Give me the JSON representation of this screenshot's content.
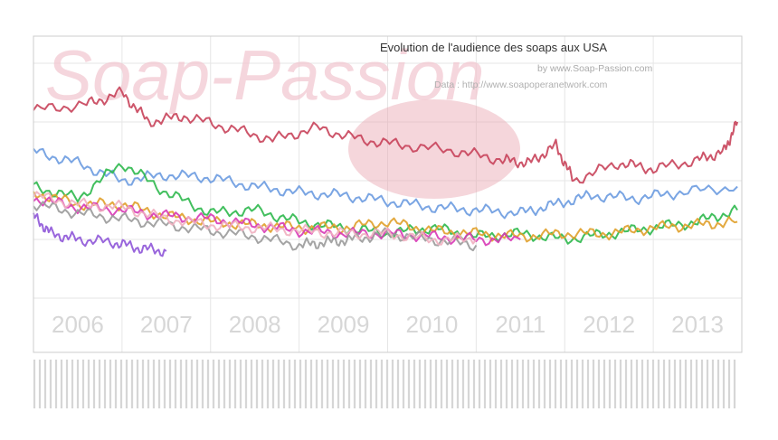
{
  "chart_data": {
    "type": "line",
    "title": "Evolution de l'audience des soaps aux USA",
    "subtitle": "by www.Soap-Passion.com",
    "source": "Data : http://www.soapoperanetwork.com",
    "watermark": "Soap-Passion",
    "x_labels": [
      "2006",
      "2007",
      "2008",
      "2009",
      "2010",
      "2011",
      "2012",
      "2013"
    ],
    "x_range": [
      2006,
      2014
    ],
    "ylim": [
      1,
      5
    ],
    "yticks": [
      1,
      2,
      3,
      4,
      5
    ],
    "grid": true,
    "series": [
      {
        "color": "#c8435a",
        "x": [
          2006.0,
          2006.6,
          2007.0,
          2007.3,
          2007.7,
          2008.2,
          2008.7,
          2009.2,
          2009.7,
          2010.2,
          2010.8,
          2011.3,
          2011.6,
          2011.9,
          2012.1,
          2012.6,
          2013.0,
          2013.5,
          2013.8,
          2013.95
        ],
        "y": [
          4.2,
          4.3,
          4.5,
          4.0,
          4.1,
          3.9,
          3.7,
          3.9,
          3.7,
          3.6,
          3.5,
          3.35,
          3.3,
          3.6,
          3.0,
          3.3,
          3.2,
          3.35,
          3.5,
          4.0
        ]
      },
      {
        "color": "#6b9be0",
        "x": [
          2006.0,
          2006.5,
          2007.0,
          2007.5,
          2008.0,
          2008.5,
          2009.0,
          2009.5,
          2010.0,
          2010.5,
          2011.0,
          2011.5,
          2011.9,
          2012.3,
          2012.8,
          2013.3,
          2013.95
        ],
        "y": [
          3.5,
          3.3,
          3.0,
          3.1,
          3.05,
          2.9,
          2.8,
          2.75,
          2.65,
          2.55,
          2.5,
          2.45,
          2.6,
          2.75,
          2.7,
          2.8,
          2.9
        ]
      },
      {
        "color": "#2db84d",
        "x": [
          2006.0,
          2006.5,
          2007.0,
          2007.5,
          2008.0,
          2008.5,
          2009.0,
          2009.5,
          2010.0,
          2010.5,
          2011.0,
          2011.5,
          2012.0,
          2012.5,
          2013.0,
          2013.5,
          2013.95
        ],
        "y": [
          2.9,
          2.7,
          3.3,
          2.8,
          2.45,
          2.5,
          2.3,
          2.2,
          2.1,
          2.2,
          2.05,
          2.1,
          2.0,
          2.1,
          2.2,
          2.3,
          2.5
        ]
      },
      {
        "color": "#e0a02a",
        "x": [
          2006.0,
          2006.5,
          2007.0,
          2007.5,
          2008.0,
          2008.5,
          2009.0,
          2009.5,
          2010.0,
          2010.5,
          2011.0,
          2011.5,
          2012.0,
          2012.5,
          2013.0,
          2013.5,
          2013.95
        ],
        "y": [
          2.8,
          2.6,
          2.6,
          2.4,
          2.3,
          2.25,
          2.2,
          2.2,
          2.3,
          2.15,
          2.1,
          2.05,
          2.1,
          2.1,
          2.2,
          2.25,
          2.3
        ]
      },
      {
        "color": "#d83ab6",
        "x": [
          2006.0,
          2006.5,
          2007.0,
          2007.5,
          2008.0,
          2008.5,
          2009.0,
          2009.5,
          2010.0,
          2010.5,
          2011.0,
          2011.5
        ],
        "y": [
          2.7,
          2.55,
          2.5,
          2.4,
          2.35,
          2.25,
          2.15,
          2.1,
          2.1,
          2.05,
          2.0,
          2.0
        ]
      },
      {
        "color": "#9a9a9a",
        "x": [
          2006.0,
          2006.5,
          2007.0,
          2007.5,
          2008.0,
          2008.5,
          2009.0,
          2009.3,
          2009.6,
          2010.0,
          2010.5,
          2011.0
        ],
        "y": [
          2.6,
          2.45,
          2.35,
          2.25,
          2.15,
          2.05,
          1.9,
          1.95,
          2.0,
          2.1,
          2.0,
          1.9
        ]
      },
      {
        "color": "#f0b0c0",
        "x": [
          2006.0,
          2006.5,
          2007.0,
          2007.5,
          2008.0,
          2008.5,
          2009.0,
          2009.5,
          2010.0,
          2010.5,
          2011.0
        ],
        "y": [
          2.75,
          2.6,
          2.55,
          2.35,
          2.25,
          2.2,
          2.15,
          2.1,
          2.1,
          2.0,
          2.0
        ]
      },
      {
        "color": "#8e55d8",
        "x": [
          2006.0,
          2006.2,
          2006.5,
          2006.9,
          2007.2,
          2007.5
        ],
        "y": [
          2.4,
          2.1,
          2.0,
          1.95,
          1.85,
          1.8
        ]
      }
    ]
  }
}
